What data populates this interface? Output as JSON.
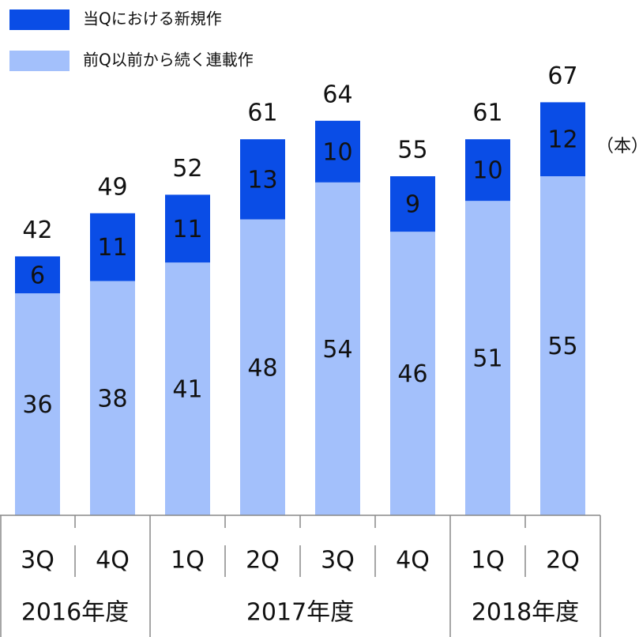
{
  "chart_data": {
    "type": "stacked-bar",
    "categories": [
      "3Q",
      "4Q",
      "1Q",
      "2Q",
      "3Q",
      "4Q",
      "1Q",
      "2Q"
    ],
    "groups": [
      {
        "label": "2016年度",
        "span": 2
      },
      {
        "label": "2017年度",
        "span": 4
      },
      {
        "label": "2018年度",
        "span": 2
      }
    ],
    "series": [
      {
        "name": "前Q以前から続く連載作",
        "color": "#a3c0fb",
        "values": [
          36,
          38,
          41,
          48,
          54,
          46,
          51,
          55
        ]
      },
      {
        "name": "当Qにおける新規作",
        "color": "#0a4de6",
        "values": [
          6,
          11,
          11,
          13,
          10,
          9,
          10,
          12
        ]
      }
    ],
    "totals": [
      42,
      49,
      52,
      61,
      64,
      55,
      61,
      67
    ],
    "unit_label": "（本）",
    "ylim": [
      0,
      80
    ]
  }
}
